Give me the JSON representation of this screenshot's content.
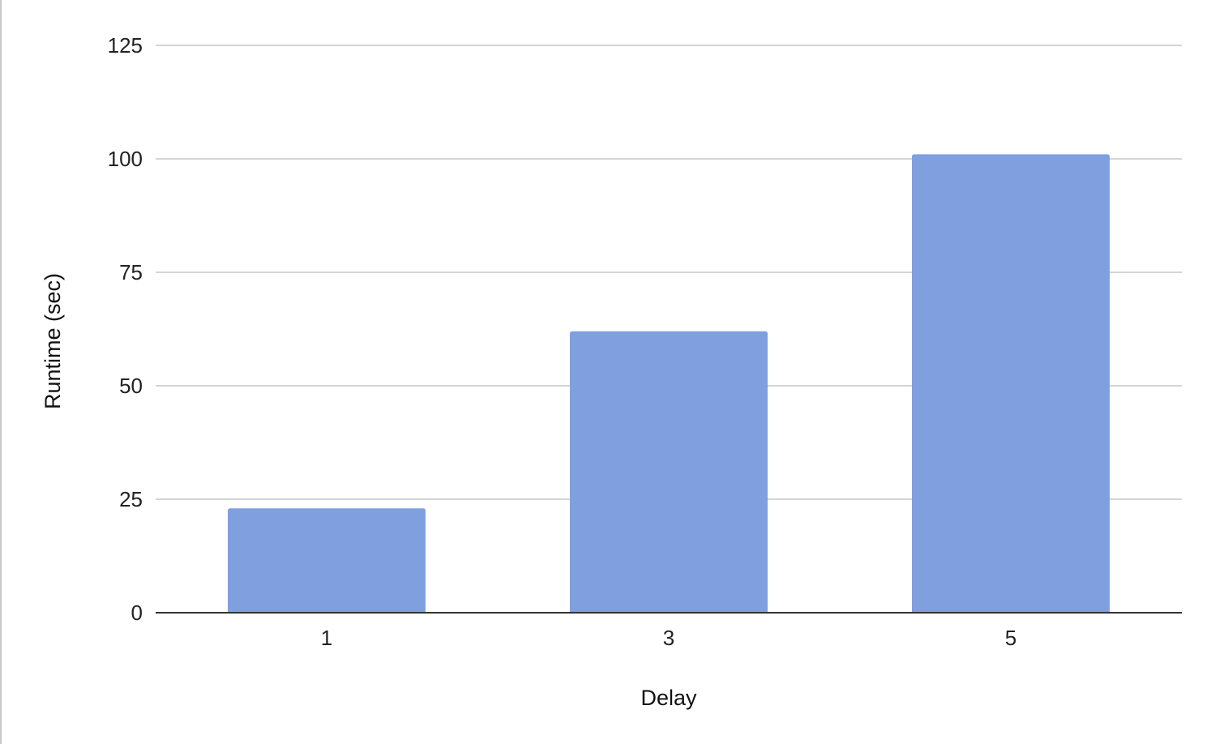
{
  "chart_data": {
    "type": "bar",
    "title": "",
    "xlabel": "Delay",
    "ylabel": "Runtime (sec)",
    "categories": [
      "1",
      "3",
      "5"
    ],
    "series": [
      {
        "values": [
          23,
          62,
          101
        ]
      }
    ],
    "ylim": [
      0,
      125
    ],
    "yticks": [
      "0",
      "25",
      "50",
      "75",
      "100",
      "125"
    ],
    "grid": true,
    "legend": "none",
    "bar_color": "#7f9fde",
    "grid_color": "#d4d4d4",
    "baseline_color": "#333333"
  }
}
